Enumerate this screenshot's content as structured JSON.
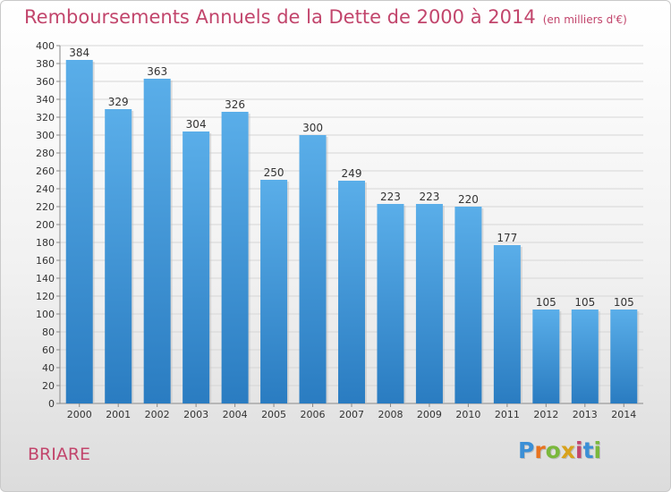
{
  "header": {
    "title": "Remboursements Annuels de la Dette de 2000 à 2014",
    "subtitle": "(en milliers d'€)"
  },
  "footer": {
    "city": "BRIARE",
    "logo_letters": [
      {
        "char": "P",
        "color": "#3b8fd6"
      },
      {
        "char": "r",
        "color": "#e8731f"
      },
      {
        "char": "o",
        "color": "#7ab83c"
      },
      {
        "char": "x",
        "color": "#d8a21c"
      },
      {
        "char": "i",
        "color": "#c2456c"
      },
      {
        "char": "t",
        "color": "#3b8fd6"
      },
      {
        "char": "i",
        "color": "#7ab83c"
      }
    ]
  },
  "chart_data": {
    "type": "bar",
    "title": "Remboursements Annuels de la Dette de 2000 à 2014",
    "subtitle": "(en milliers d'€)",
    "xlabel": "",
    "ylabel": "",
    "categories": [
      "2000",
      "2001",
      "2002",
      "2003",
      "2004",
      "2005",
      "2006",
      "2007",
      "2008",
      "2009",
      "2010",
      "2011",
      "2012",
      "2013",
      "2014"
    ],
    "values": [
      384,
      329,
      363,
      304,
      326,
      250,
      300,
      249,
      223,
      223,
      220,
      177,
      105,
      105,
      105
    ],
    "ylim": [
      0,
      400
    ],
    "yticks": [
      0,
      20,
      40,
      60,
      80,
      100,
      120,
      140,
      160,
      180,
      200,
      220,
      240,
      260,
      280,
      300,
      320,
      340,
      360,
      380,
      400
    ],
    "grid": true,
    "legend": "none",
    "bar_color_top": "#5aaee9",
    "bar_color_bottom": "#2a7cc1",
    "text_color": "#333333"
  }
}
